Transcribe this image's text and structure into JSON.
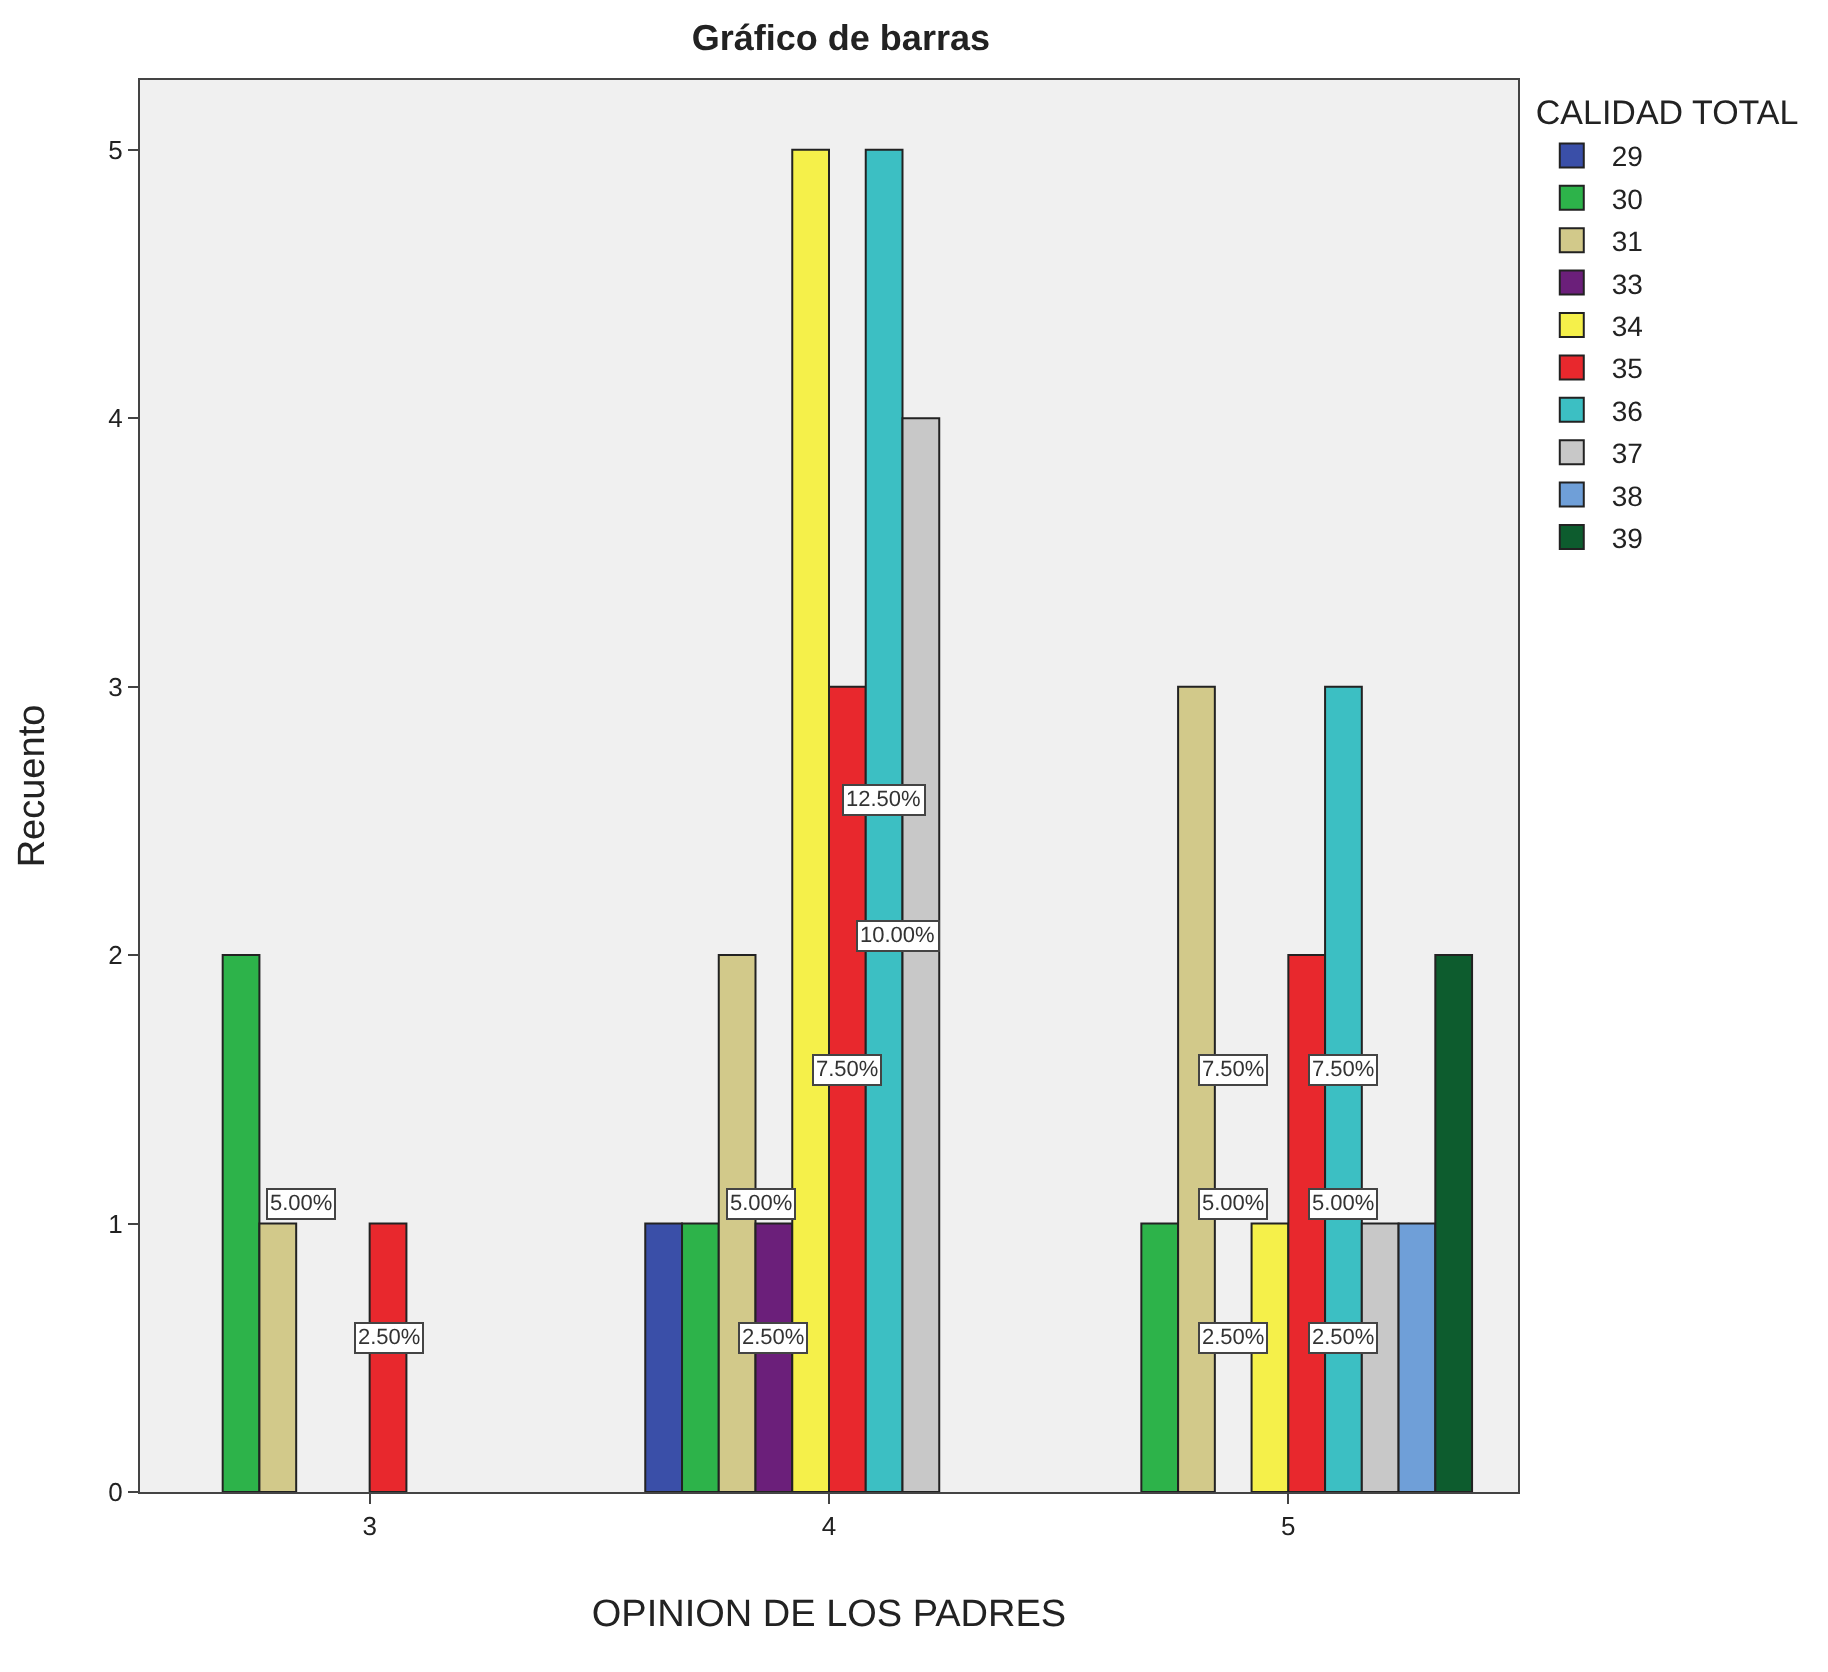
{
  "chart_data": {
    "type": "bar",
    "title": "Gráfico de barras",
    "xlabel": "OPINION DE LOS PADRES",
    "ylabel": "Recuento",
    "legend_title": "CALIDAD TOTAL",
    "legend": "top right",
    "grid": false,
    "categories": [
      "3",
      "4",
      "5"
    ],
    "ylim": [
      0,
      5.26
    ],
    "yticks": [
      0,
      1,
      2,
      3,
      4,
      5
    ],
    "series": [
      {
        "name": "29",
        "color": "#3a4fa8",
        "values": [
          null,
          1,
          null
        ]
      },
      {
        "name": "30",
        "color": "#2db34a",
        "values": [
          2,
          1,
          1
        ]
      },
      {
        "name": "31",
        "color": "#d2c98a",
        "values": [
          1,
          2,
          3
        ]
      },
      {
        "name": "33",
        "color": "#6b1f7a",
        "values": [
          null,
          1,
          null
        ]
      },
      {
        "name": "34",
        "color": "#f5f04a",
        "values": [
          null,
          5,
          1
        ]
      },
      {
        "name": "35",
        "color": "#e8282d",
        "values": [
          1,
          3,
          2
        ]
      },
      {
        "name": "36",
        "color": "#3cbfc3",
        "values": [
          null,
          5,
          3
        ]
      },
      {
        "name": "37",
        "color": "#c8c8c8",
        "values": [
          null,
          4,
          1
        ]
      },
      {
        "name": "38",
        "color": "#6f9fd8",
        "values": [
          null,
          null,
          1
        ]
      },
      {
        "name": "39",
        "color": "#0d5c2e",
        "values": [
          null,
          null,
          2
        ]
      }
    ],
    "annotations": [
      {
        "text": "5.00%",
        "x": "3",
        "y": 1
      },
      {
        "text": "2.50%",
        "x": "3",
        "y": 0.5
      },
      {
        "text": "12.50%",
        "x": "4",
        "y": 2.5
      },
      {
        "text": "10.00%",
        "x": "4",
        "y": 2
      },
      {
        "text": "7.50%",
        "x": "4",
        "y": 1.5
      },
      {
        "text": "5.00%",
        "x": "4",
        "y": 1
      },
      {
        "text": "2.50%",
        "x": "4",
        "y": 0.5
      },
      {
        "text": "7.50%",
        "x": "5",
        "y": 1.5
      },
      {
        "text": "7.50%",
        "x": "5",
        "y": 1.5
      },
      {
        "text": "5.00%",
        "x": "5",
        "y": 1
      },
      {
        "text": "5.00%",
        "x": "5",
        "y": 1
      },
      {
        "text": "2.50%",
        "x": "5",
        "y": 0.5
      },
      {
        "text": "2.50%",
        "x": "5",
        "y": 0.5
      }
    ]
  }
}
